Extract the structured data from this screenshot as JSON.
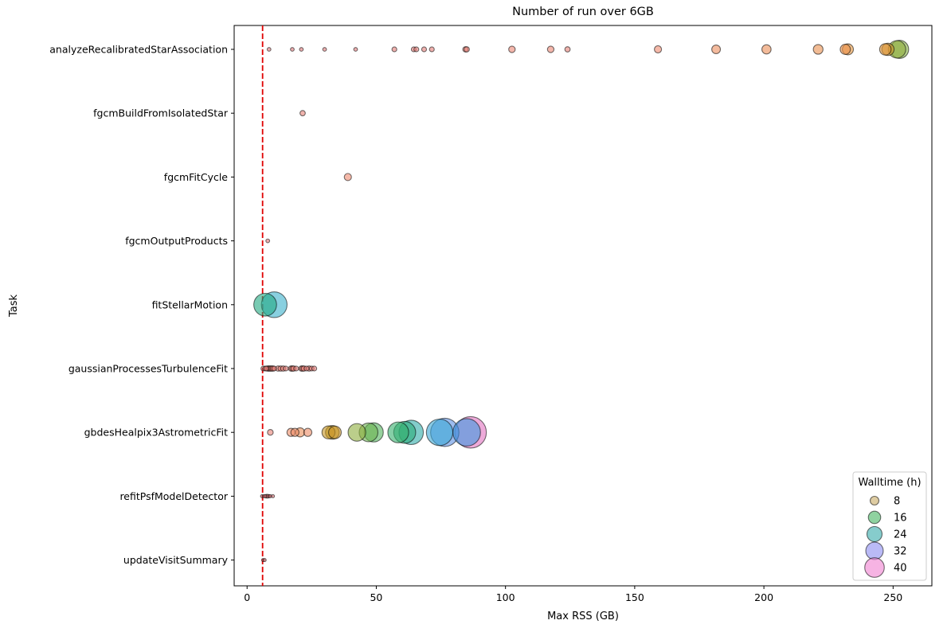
{
  "chart_data": {
    "type": "scatter",
    "title": "Number of run over 6GB",
    "xlabel": "Max RSS (GB)",
    "ylabel": "Task",
    "xlim": [
      -5,
      265
    ],
    "xticks": [
      0,
      50,
      100,
      150,
      200,
      250
    ],
    "threshold_line": {
      "x": 6,
      "color": "#e00000",
      "style": "dashed"
    },
    "categories": [
      "analyzeRecalibratedStarAssociation",
      "fgcmBuildFromIsolatedStar",
      "fgcmFitCycle",
      "fgcmOutputProducts",
      "fitStellarMotion",
      "gaussianProcessesTurbulenceFit",
      "gbdesHealpix3AstrometricFit",
      "refitPsfModelDetector",
      "updateVisitSummary"
    ],
    "size_variable": "Walltime (h)",
    "points": [
      {
        "task": "analyzeRecalibratedStarAssociation",
        "x": 8.5,
        "walltime": 0.3
      },
      {
        "task": "analyzeRecalibratedStarAssociation",
        "x": 17.5,
        "walltime": 0.3
      },
      {
        "task": "analyzeRecalibratedStarAssociation",
        "x": 21,
        "walltime": 0.3
      },
      {
        "task": "analyzeRecalibratedStarAssociation",
        "x": 30,
        "walltime": 0.3
      },
      {
        "task": "analyzeRecalibratedStarAssociation",
        "x": 42,
        "walltime": 0.3
      },
      {
        "task": "analyzeRecalibratedStarAssociation",
        "x": 57,
        "walltime": 0.5
      },
      {
        "task": "analyzeRecalibratedStarAssociation",
        "x": 64.5,
        "walltime": 0.5
      },
      {
        "task": "analyzeRecalibratedStarAssociation",
        "x": 65.5,
        "walltime": 0.5
      },
      {
        "task": "analyzeRecalibratedStarAssociation",
        "x": 68.5,
        "walltime": 0.5
      },
      {
        "task": "analyzeRecalibratedStarAssociation",
        "x": 71.5,
        "walltime": 0.5
      },
      {
        "task": "analyzeRecalibratedStarAssociation",
        "x": 84.5,
        "walltime": 0.6
      },
      {
        "task": "analyzeRecalibratedStarAssociation",
        "x": 85,
        "walltime": 0.6
      },
      {
        "task": "analyzeRecalibratedStarAssociation",
        "x": 102.5,
        "walltime": 0.9
      },
      {
        "task": "analyzeRecalibratedStarAssociation",
        "x": 117.5,
        "walltime": 0.9
      },
      {
        "task": "analyzeRecalibratedStarAssociation",
        "x": 124,
        "walltime": 0.6
      },
      {
        "task": "analyzeRecalibratedStarAssociation",
        "x": 159,
        "walltime": 1.1
      },
      {
        "task": "analyzeRecalibratedStarAssociation",
        "x": 181.5,
        "walltime": 1.6
      },
      {
        "task": "analyzeRecalibratedStarAssociation",
        "x": 201,
        "walltime": 1.8
      },
      {
        "task": "analyzeRecalibratedStarAssociation",
        "x": 221,
        "walltime": 2.0
      },
      {
        "task": "analyzeRecalibratedStarAssociation",
        "x": 231.5,
        "walltime": 2.2
      },
      {
        "task": "analyzeRecalibratedStarAssociation",
        "x": 232.5,
        "walltime": 2.6
      },
      {
        "task": "analyzeRecalibratedStarAssociation",
        "x": 247,
        "walltime": 2.8
      },
      {
        "task": "analyzeRecalibratedStarAssociation",
        "x": 248,
        "walltime": 3.2
      },
      {
        "task": "analyzeRecalibratedStarAssociation",
        "x": 251.5,
        "walltime": 6.5
      },
      {
        "task": "analyzeRecalibratedStarAssociation",
        "x": 252.5,
        "walltime": 7.0
      },
      {
        "task": "fgcmBuildFromIsolatedStar",
        "x": 21.5,
        "walltime": 0.6
      },
      {
        "task": "fgcmFitCycle",
        "x": 39,
        "walltime": 1.1
      },
      {
        "task": "fgcmOutputProducts",
        "x": 8,
        "walltime": 0.3
      },
      {
        "task": "fitStellarMotion",
        "x": 7,
        "walltime": 11
      },
      {
        "task": "fitStellarMotion",
        "x": 10.5,
        "walltime": 14
      },
      {
        "task": "gaussianProcessesTurbulenceFit",
        "x": 6.3,
        "walltime": 0.5
      },
      {
        "task": "gaussianProcessesTurbulenceFit",
        "x": 7,
        "walltime": 0.5
      },
      {
        "task": "gaussianProcessesTurbulenceFit",
        "x": 7.5,
        "walltime": 0.5
      },
      {
        "task": "gaussianProcessesTurbulenceFit",
        "x": 8,
        "walltime": 0.6
      },
      {
        "task": "gaussianProcessesTurbulenceFit",
        "x": 8.5,
        "walltime": 0.6
      },
      {
        "task": "gaussianProcessesTurbulenceFit",
        "x": 9,
        "walltime": 0.6
      },
      {
        "task": "gaussianProcessesTurbulenceFit",
        "x": 9.5,
        "walltime": 0.6
      },
      {
        "task": "gaussianProcessesTurbulenceFit",
        "x": 10,
        "walltime": 0.6
      },
      {
        "task": "gaussianProcessesTurbulenceFit",
        "x": 10.5,
        "walltime": 0.5
      },
      {
        "task": "gaussianProcessesTurbulenceFit",
        "x": 12,
        "walltime": 0.6
      },
      {
        "task": "gaussianProcessesTurbulenceFit",
        "x": 13,
        "walltime": 0.6
      },
      {
        "task": "gaussianProcessesTurbulenceFit",
        "x": 14,
        "walltime": 0.6
      },
      {
        "task": "gaussianProcessesTurbulenceFit",
        "x": 15,
        "walltime": 0.5
      },
      {
        "task": "gaussianProcessesTurbulenceFit",
        "x": 17,
        "walltime": 0.6
      },
      {
        "task": "gaussianProcessesTurbulenceFit",
        "x": 17.5,
        "walltime": 0.6
      },
      {
        "task": "gaussianProcessesTurbulenceFit",
        "x": 18,
        "walltime": 0.6
      },
      {
        "task": "gaussianProcessesTurbulenceFit",
        "x": 19,
        "walltime": 0.5
      },
      {
        "task": "gaussianProcessesTurbulenceFit",
        "x": 21,
        "walltime": 0.6
      },
      {
        "task": "gaussianProcessesTurbulenceFit",
        "x": 21.5,
        "walltime": 0.6
      },
      {
        "task": "gaussianProcessesTurbulenceFit",
        "x": 22,
        "walltime": 0.6
      },
      {
        "task": "gaussianProcessesTurbulenceFit",
        "x": 23,
        "walltime": 0.5
      },
      {
        "task": "gaussianProcessesTurbulenceFit",
        "x": 24,
        "walltime": 0.6
      },
      {
        "task": "gaussianProcessesTurbulenceFit",
        "x": 25,
        "walltime": 0.5
      },
      {
        "task": "gaussianProcessesTurbulenceFit",
        "x": 26,
        "walltime": 0.5
      },
      {
        "task": "gbdesHealpix3AstrometricFit",
        "x": 9,
        "walltime": 0.7
      },
      {
        "task": "gbdesHealpix3AstrometricFit",
        "x": 17,
        "walltime": 1.4
      },
      {
        "task": "gbdesHealpix3AstrometricFit",
        "x": 18.5,
        "walltime": 1.4
      },
      {
        "task": "gbdesHealpix3AstrometricFit",
        "x": 20.5,
        "walltime": 1.8
      },
      {
        "task": "gbdesHealpix3AstrometricFit",
        "x": 23.5,
        "walltime": 1.4
      },
      {
        "task": "gbdesHealpix3AstrometricFit",
        "x": 31.5,
        "walltime": 3.6
      },
      {
        "task": "gbdesHealpix3AstrometricFit",
        "x": 33,
        "walltime": 4.0
      },
      {
        "task": "gbdesHealpix3AstrometricFit",
        "x": 34,
        "walltime": 3.4
      },
      {
        "task": "gbdesHealpix3AstrometricFit",
        "x": 42.5,
        "walltime": 6.6
      },
      {
        "task": "gbdesHealpix3AstrometricFit",
        "x": 47,
        "walltime": 7.4
      },
      {
        "task": "gbdesHealpix3AstrometricFit",
        "x": 49,
        "walltime": 7.8
      },
      {
        "task": "gbdesHealpix3AstrometricFit",
        "x": 58.5,
        "walltime": 9.2
      },
      {
        "task": "gbdesHealpix3AstrometricFit",
        "x": 61,
        "walltime": 10.2
      },
      {
        "task": "gbdesHealpix3AstrometricFit",
        "x": 63.5,
        "walltime": 12.6
      },
      {
        "task": "gbdesHealpix3AstrometricFit",
        "x": 74.5,
        "walltime": 14.8
      },
      {
        "task": "gbdesHealpix3AstrometricFit",
        "x": 76.5,
        "walltime": 17.0
      },
      {
        "task": "gbdesHealpix3AstrometricFit",
        "x": 85,
        "walltime": 16.0
      },
      {
        "task": "gbdesHealpix3AstrometricFit",
        "x": 86.5,
        "walltime": 21.0
      },
      {
        "task": "refitPsfModelDetector",
        "x": 5.8,
        "walltime": 0.2
      },
      {
        "task": "refitPsfModelDetector",
        "x": 6.5,
        "walltime": 0.2
      },
      {
        "task": "refitPsfModelDetector",
        "x": 7,
        "walltime": 0.2
      },
      {
        "task": "refitPsfModelDetector",
        "x": 7.5,
        "walltime": 0.3
      },
      {
        "task": "refitPsfModelDetector",
        "x": 8,
        "walltime": 0.3
      },
      {
        "task": "refitPsfModelDetector",
        "x": 8.5,
        "walltime": 0.2
      },
      {
        "task": "refitPsfModelDetector",
        "x": 9,
        "walltime": 0.2
      },
      {
        "task": "refitPsfModelDetector",
        "x": 10,
        "walltime": 0.2
      },
      {
        "task": "updateVisitSummary",
        "x": 6.2,
        "walltime": 0.2
      },
      {
        "task": "updateVisitSummary",
        "x": 6.8,
        "walltime": 0.2
      }
    ],
    "legend": {
      "title": "Walltime (h)",
      "placement": "bottom-right",
      "entries": [
        {
          "label": "8",
          "value": 8,
          "color": "#c8aa64"
        },
        {
          "label": "16",
          "value": 16,
          "color": "#44b461"
        },
        {
          "label": "24",
          "value": 24,
          "color": "#35aaaa"
        },
        {
          "label": "32",
          "value": 32,
          "color": "#8c8cf0"
        },
        {
          "label": "40",
          "value": 40,
          "color": "#f080d0"
        }
      ]
    },
    "color_ramp": [
      {
        "walltime": 0,
        "color": "#d9707c"
      },
      {
        "walltime": 1,
        "color": "#ee8a74"
      },
      {
        "walltime": 2.5,
        "color": "#e8923c"
      },
      {
        "walltime": 4,
        "color": "#b8961a"
      },
      {
        "walltime": 7,
        "color": "#86b042"
      },
      {
        "walltime": 8,
        "color": "#44b461"
      },
      {
        "walltime": 11,
        "color": "#20a880"
      },
      {
        "walltime": 14,
        "color": "#3ab0cc"
      },
      {
        "walltime": 16,
        "color": "#3c98e0"
      },
      {
        "walltime": 18,
        "color": "#7a8ae8"
      },
      {
        "walltime": 20,
        "color": "#e070c0"
      },
      {
        "walltime": 40,
        "color": "#f080c8"
      }
    ]
  }
}
